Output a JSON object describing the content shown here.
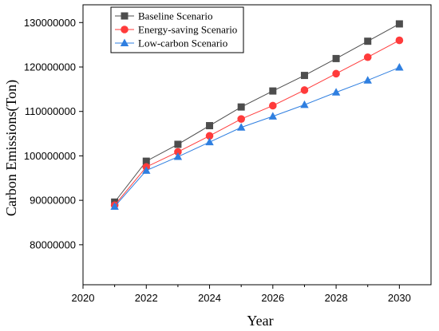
{
  "chart_data": {
    "type": "line",
    "title": "",
    "xlabel": "Year",
    "ylabel": "Carbon Emissions(Ton)",
    "xlim": [
      2020,
      2031
    ],
    "ylim": [
      71000000,
      134000000
    ],
    "xticks": [
      2020,
      2022,
      2024,
      2026,
      2028,
      2030
    ],
    "yticks": [
      80000000,
      90000000,
      100000000,
      110000000,
      120000000,
      130000000
    ],
    "x": [
      2021,
      2022,
      2023,
      2024,
      2025,
      2026,
      2027,
      2028,
      2029,
      2030
    ],
    "series": [
      {
        "name": "Baseline Scenario",
        "color": "#4d4d4d",
        "marker": "square",
        "values": [
          89600000,
          98800000,
          102600000,
          106800000,
          111000000,
          114600000,
          118100000,
          121900000,
          125800000,
          129700000
        ]
      },
      {
        "name": "Energy-saving Scenario",
        "color": "#ff3b3b",
        "marker": "circle",
        "values": [
          88900000,
          97500000,
          100900000,
          104500000,
          108300000,
          111300000,
          114800000,
          118500000,
          122200000,
          126000000
        ]
      },
      {
        "name": "Low-carbon Scenario",
        "color": "#2f7fe0",
        "marker": "triangle",
        "values": [
          88600000,
          96700000,
          99800000,
          103100000,
          106400000,
          108900000,
          111500000,
          114300000,
          117000000,
          119900000
        ]
      }
    ],
    "legend_position": "top-left",
    "grid": false
  }
}
